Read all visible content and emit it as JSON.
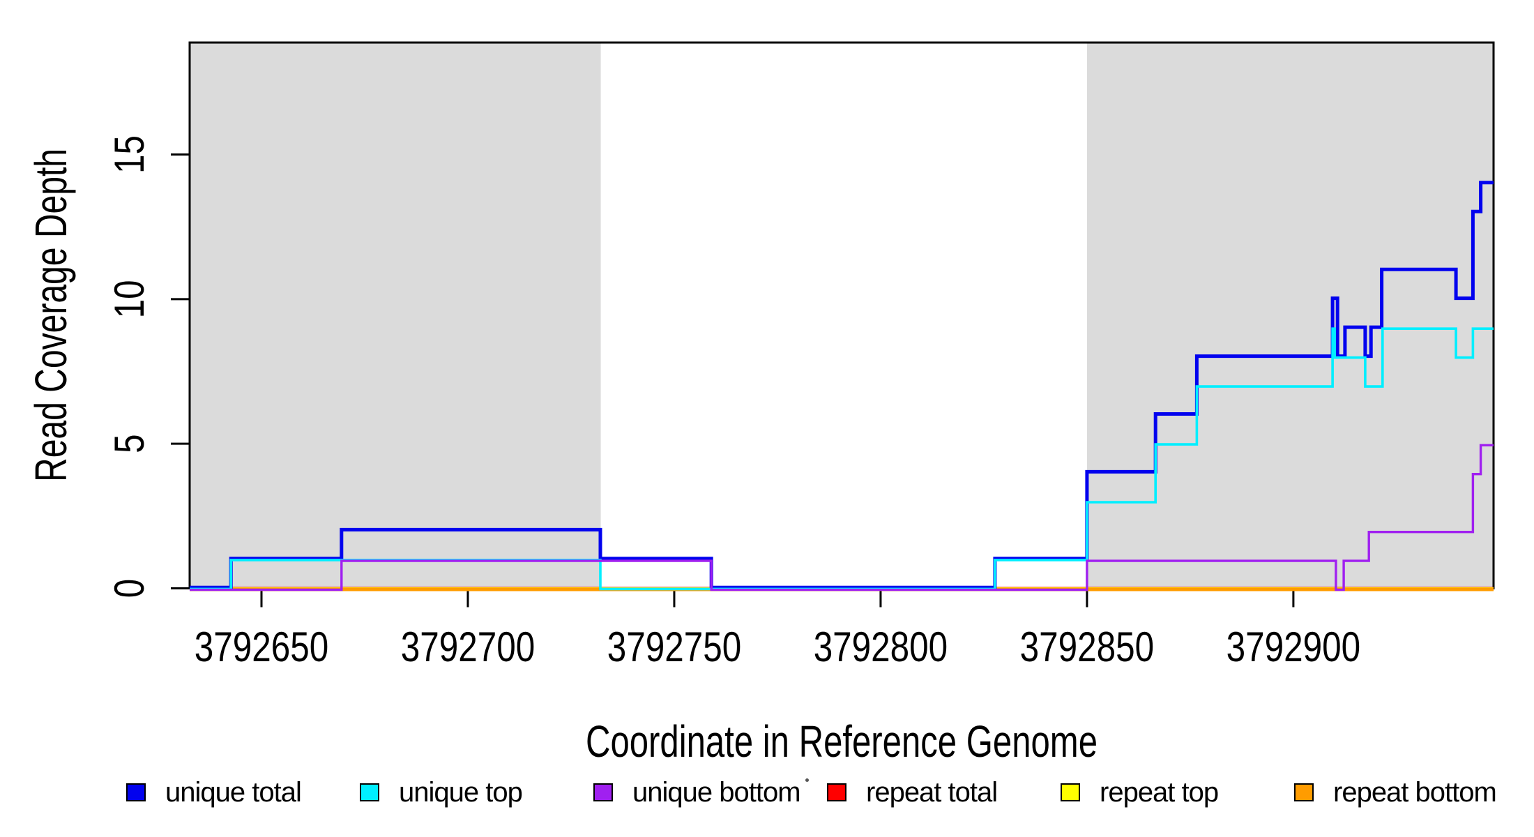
{
  "figure": {
    "background": "#FFFFFF",
    "shaded_band_color": "#DBDBDB",
    "axis_color": "#000000"
  },
  "chart_data": {
    "type": "line",
    "subtype": "step",
    "title": "",
    "xlabel": "Coordinate in Reference Genome",
    "ylabel": "Read Coverage Depth",
    "xlim": [
      3792632.6,
      3792948.5
    ],
    "ylim": [
      0,
      18.87
    ],
    "x_ticks": [
      3792650,
      3792700,
      3792750,
      3792800,
      3792850,
      3792900
    ],
    "y_ticks": [
      0,
      5,
      10,
      15
    ],
    "grid": false,
    "legend_position": "bottom",
    "shaded_regions": [
      {
        "from": 3792632.6,
        "to": 3792732.2
      },
      {
        "from": 3792850.0,
        "to": 3792948.5
      }
    ],
    "series": [
      {
        "name": "unique total",
        "color": "#0202EE",
        "start": 0,
        "steps": [
          [
            3792642.6,
            1
          ],
          [
            3792669.4,
            2
          ],
          [
            3792732.1,
            1
          ],
          [
            3792759.0,
            0
          ],
          [
            3792827.7,
            1
          ],
          [
            3792850.0,
            4
          ],
          [
            3792866.6,
            6
          ],
          [
            3792876.6,
            8
          ],
          [
            3792909.5,
            10
          ],
          [
            3792910.7,
            8
          ],
          [
            3792912.5,
            9
          ],
          [
            3792917.4,
            8
          ],
          [
            3792918.8,
            9
          ],
          [
            3792921.4,
            11
          ],
          [
            3792939.4,
            10
          ],
          [
            3792943.5,
            13
          ],
          [
            3792945.4,
            14
          ]
        ]
      },
      {
        "name": "unique top",
        "color": "#00EFFF",
        "start": 0,
        "steps": [
          [
            3792642.6,
            1
          ],
          [
            3792732.1,
            0
          ],
          [
            3792827.7,
            1
          ],
          [
            3792850.0,
            3
          ],
          [
            3792866.6,
            5
          ],
          [
            3792876.6,
            7
          ],
          [
            3792909.5,
            9
          ],
          [
            3792910.0,
            8
          ],
          [
            3792917.4,
            7
          ],
          [
            3792921.6,
            9
          ],
          [
            3792939.4,
            8
          ],
          [
            3792943.5,
            9
          ]
        ]
      },
      {
        "name": "unique bottom",
        "color": "#A020F0",
        "start": 0,
        "steps": [
          [
            3792669.4,
            1
          ],
          [
            3792759.0,
            0
          ],
          [
            3792850.0,
            1
          ],
          [
            3792910.3,
            0
          ],
          [
            3792912.2,
            1
          ],
          [
            3792918.3,
            2
          ],
          [
            3792943.5,
            4
          ],
          [
            3792945.4,
            5
          ]
        ]
      },
      {
        "name": "repeat total",
        "color": "#FF0000",
        "start": 0,
        "steps": []
      },
      {
        "name": "repeat top",
        "color": "#FFFF00",
        "start": 0,
        "steps": []
      },
      {
        "name": "repeat bottom",
        "color": "#FF9C00",
        "start": 0,
        "steps": []
      }
    ]
  }
}
